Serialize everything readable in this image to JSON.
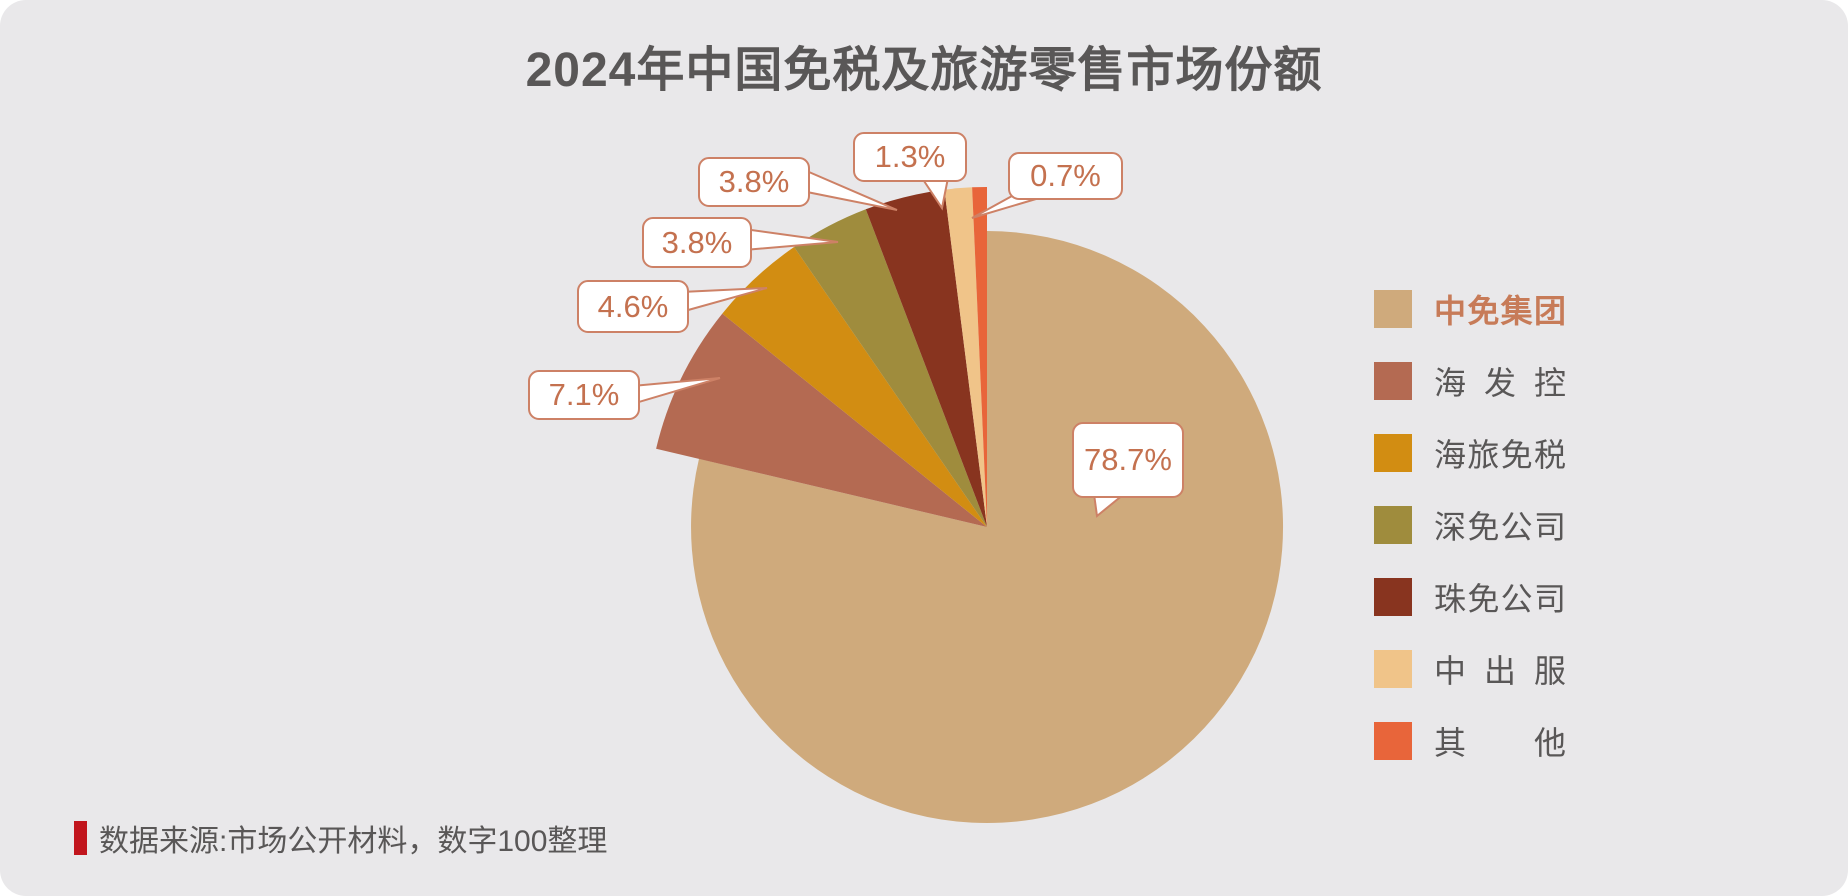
{
  "panel": {
    "background": "#E9E8EA",
    "page_background": "#FFFFFF"
  },
  "title": {
    "text": "2024年中国免税及旅游零售市场份额",
    "color": "#595757"
  },
  "chart_data": {
    "type": "pie",
    "title": "2024年中国免税及旅游零售市场份额",
    "value_unit": "percent",
    "direction": "clockwise",
    "start_angle": "12-oclock",
    "legend_position": "right",
    "grid": false,
    "slices": [
      {
        "name": "中免集团",
        "value": 78.7,
        "label": "78.7%",
        "color": "#CFAA7C"
      },
      {
        "name": "海发控",
        "value": 7.1,
        "label": "7.1%",
        "color": "#B46A52"
      },
      {
        "name": "海旅免税",
        "value": 4.6,
        "label": "4.6%",
        "color": "#D28D12"
      },
      {
        "name": "深免公司",
        "value": 3.8,
        "label": "3.8%",
        "color": "#9F8C3D"
      },
      {
        "name": "珠免公司",
        "value": 3.8,
        "label": "3.8%",
        "color": "#88341F"
      },
      {
        "name": "中出服",
        "value": 1.3,
        "label": "1.3%",
        "color": "#F0C489"
      },
      {
        "name": "其他",
        "value": 0.7,
        "label": "0.7%",
        "color": "#E8653A"
      }
    ],
    "callout_style": {
      "fill": "#FFFFFF",
      "border_color": "#CD8166",
      "text_color": "#C4714F"
    }
  },
  "legend": {
    "text_color": "#595757",
    "highlighted_item": "中免集团",
    "highlight_color": "#C77B58",
    "items": [
      "中免集团",
      "海发控",
      "海旅免税",
      "深免公司",
      "珠免公司",
      "中出服",
      "其他"
    ]
  },
  "footer": {
    "source_text": "数据来源:市场公开材料，数字100整理",
    "accent_color": "#C1151D",
    "text_color": "#595757"
  }
}
